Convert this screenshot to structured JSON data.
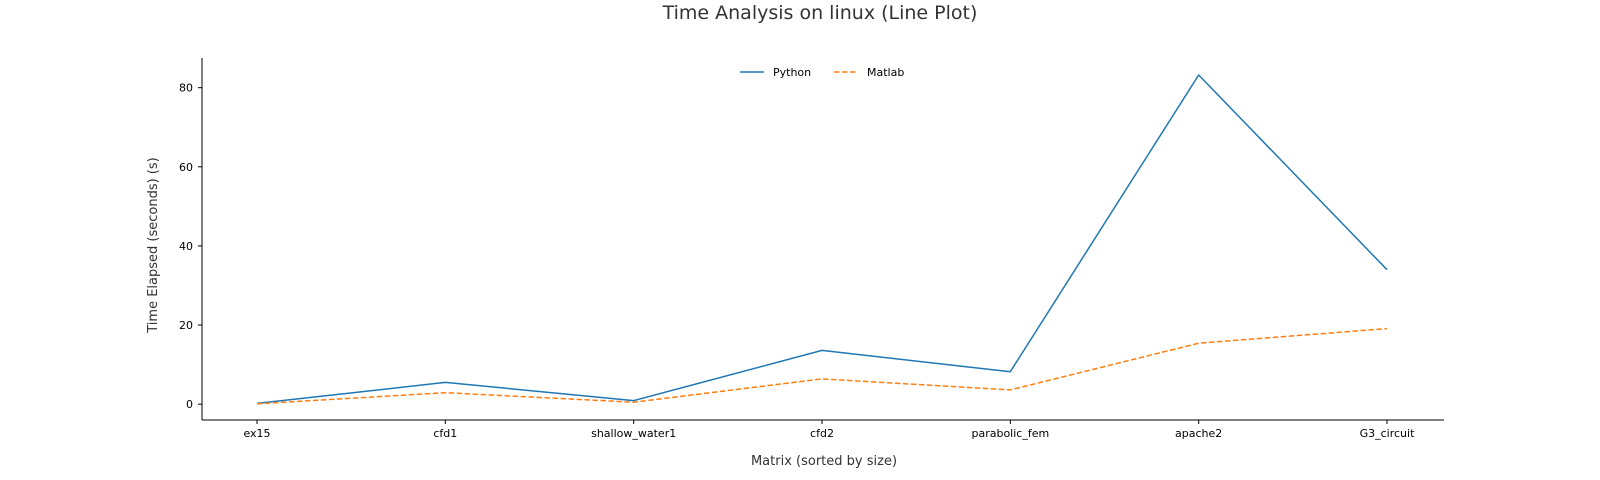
{
  "chart_data": {
    "type": "line",
    "title": "Time Analysis on linux (Line Plot)",
    "xlabel": "Matrix (sorted by size)",
    "ylabel": "Time Elapsed (seconds) (s)",
    "categories": [
      "ex15",
      "cfd1",
      "shallow_water1",
      "cfd2",
      "parabolic_fem",
      "apache2",
      "G3_circuit"
    ],
    "yticks": [
      0,
      20,
      40,
      60,
      80
    ],
    "ylim": [
      -4,
      87.5
    ],
    "grid": false,
    "legend_position": "top-center",
    "series": [
      {
        "name": "Python",
        "values": [
          0.2,
          5.5,
          0.9,
          13.6,
          8.2,
          83.2,
          34.0
        ],
        "color": "#1f77b4",
        "style": "solid"
      },
      {
        "name": "Matlab",
        "values": [
          0.1,
          2.9,
          0.5,
          6.4,
          3.6,
          15.4,
          19.1
        ],
        "color": "#ff7f0e",
        "style": "dashed"
      }
    ]
  }
}
